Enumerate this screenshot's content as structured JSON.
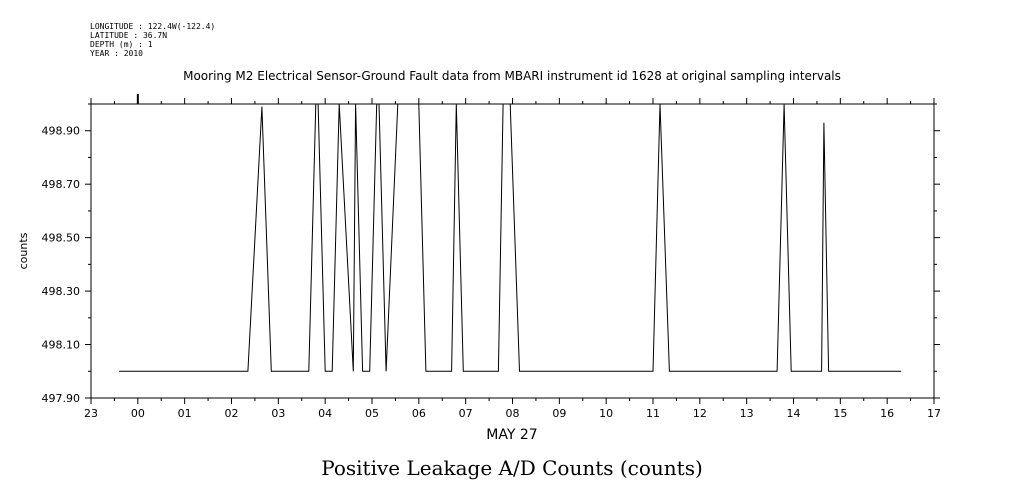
{
  "meta": {
    "longitude": "LONGITUDE : 122.4W(-122.4)",
    "latitude": "LATITUDE : 36.7N",
    "depth": "DEPTH (m) : 1",
    "year": "YEAR : 2010"
  },
  "chart_data": {
    "type": "line",
    "title": "Mooring M2 Electrical Sensor-Ground Fault data from MBARI instrument id 1628 at original sampling intervals",
    "xlabel": "MAY 27",
    "ylabel": "counts",
    "bottom_title": "Positive Leakage A/D Counts (counts)",
    "xlim": [
      23,
      41
    ],
    "ylim": [
      497.9,
      499.0
    ],
    "x_tick_labels": [
      "23",
      "00",
      "01",
      "02",
      "03",
      "04",
      "05",
      "06",
      "07",
      "08",
      "09",
      "10",
      "11",
      "12",
      "13",
      "14",
      "15",
      "16",
      "17"
    ],
    "y_tick_labels": [
      "497.90",
      "498.10",
      "498.30",
      "498.50",
      "498.70",
      "498.90"
    ],
    "y_tick_values": [
      497.9,
      498.1,
      498.3,
      498.5,
      498.7,
      498.9
    ],
    "grid": false,
    "series": [
      {
        "name": "",
        "x": [
          23.6,
          26.35,
          26.65,
          26.85,
          27.65,
          27.8,
          27.85,
          28.0,
          28.15,
          28.3,
          28.6,
          28.65,
          28.8,
          28.95,
          29.1,
          29.15,
          29.3,
          29.55,
          29.6,
          29.95,
          30.0,
          30.15,
          30.7,
          30.8,
          30.95,
          31.7,
          31.8,
          31.95,
          32.15,
          35.0,
          35.15,
          35.35,
          37.65,
          37.8,
          37.95,
          38.6,
          38.65,
          38.75,
          40.3
        ],
        "y": [
          498.0,
          498.0,
          498.99,
          498.0,
          498.0,
          499.0,
          499.0,
          498.0,
          498.0,
          499.0,
          498.0,
          499.0,
          498.0,
          498.0,
          499.0,
          499.0,
          498.0,
          499.0,
          499.0,
          499.0,
          499.0,
          498.0,
          498.0,
          499.0,
          498.0,
          498.0,
          499.0,
          499.0,
          498.0,
          498.0,
          499.0,
          498.0,
          498.0,
          499.0,
          498.0,
          498.0,
          498.93,
          498.0,
          498.0
        ]
      }
    ]
  }
}
